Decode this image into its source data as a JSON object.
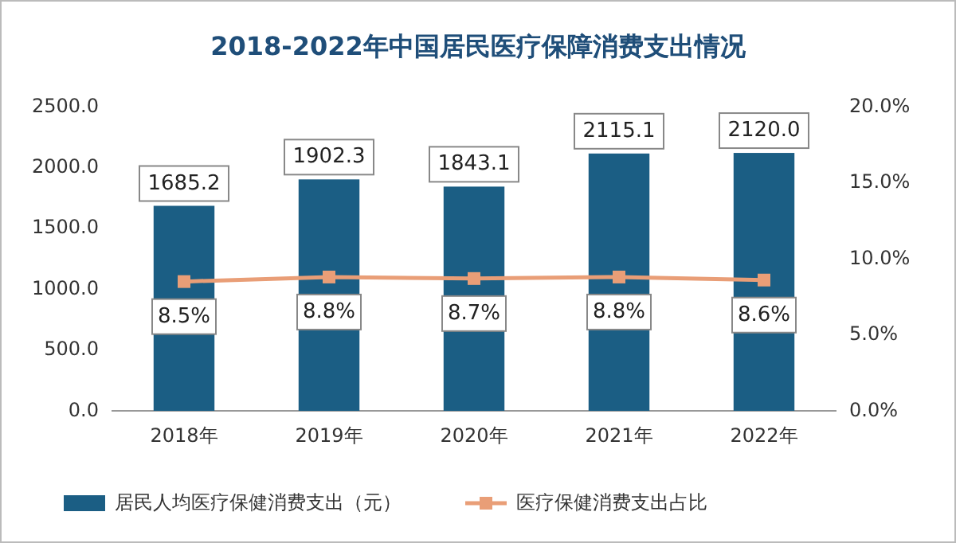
{
  "chart_data": {
    "type": "bar",
    "title": "2018-2022年中国居民医疗保障消费支出情况",
    "categories": [
      "2018年",
      "2019年",
      "2020年",
      "2021年",
      "2022年"
    ],
    "series": [
      {
        "name": "居民人均医疗保健消费支出（元）",
        "color": "#1b5e84",
        "values": [
          1685.2,
          1902.3,
          1843.1,
          2115.1,
          2120.0
        ],
        "value_labels": [
          "1685.2",
          "1902.3",
          "1843.1",
          "2115.1",
          "2120.0"
        ]
      },
      {
        "name": "医疗保健消费支出占比",
        "type": "line",
        "axis": "y2",
        "color": "#e99e77",
        "marker": "square",
        "values": [
          8.5,
          8.8,
          8.7,
          8.8,
          8.6
        ],
        "value_labels": [
          "8.5%",
          "8.8%",
          "8.7%",
          "8.8%",
          "8.6%"
        ]
      }
    ],
    "ylim": [
      0,
      2500
    ],
    "yticks": [
      {
        "value": 0,
        "label": "0.0"
      },
      {
        "value": 500,
        "label": "500.0"
      },
      {
        "value": 1000,
        "label": "1000.0"
      },
      {
        "value": 1500,
        "label": "1500.0"
      },
      {
        "value": 2000,
        "label": "2000.0"
      },
      {
        "value": 2500,
        "label": "2500.0"
      }
    ],
    "y2lim": [
      0,
      20
    ],
    "y2ticks": [
      {
        "value": 0,
        "label": "0.0%"
      },
      {
        "value": 5,
        "label": "5.0%"
      },
      {
        "value": 10,
        "label": "10.0%"
      },
      {
        "value": 15,
        "label": "15.0%"
      },
      {
        "value": 20,
        "label": "20.0%"
      }
    ],
    "legend": "bottom",
    "grid": false
  }
}
